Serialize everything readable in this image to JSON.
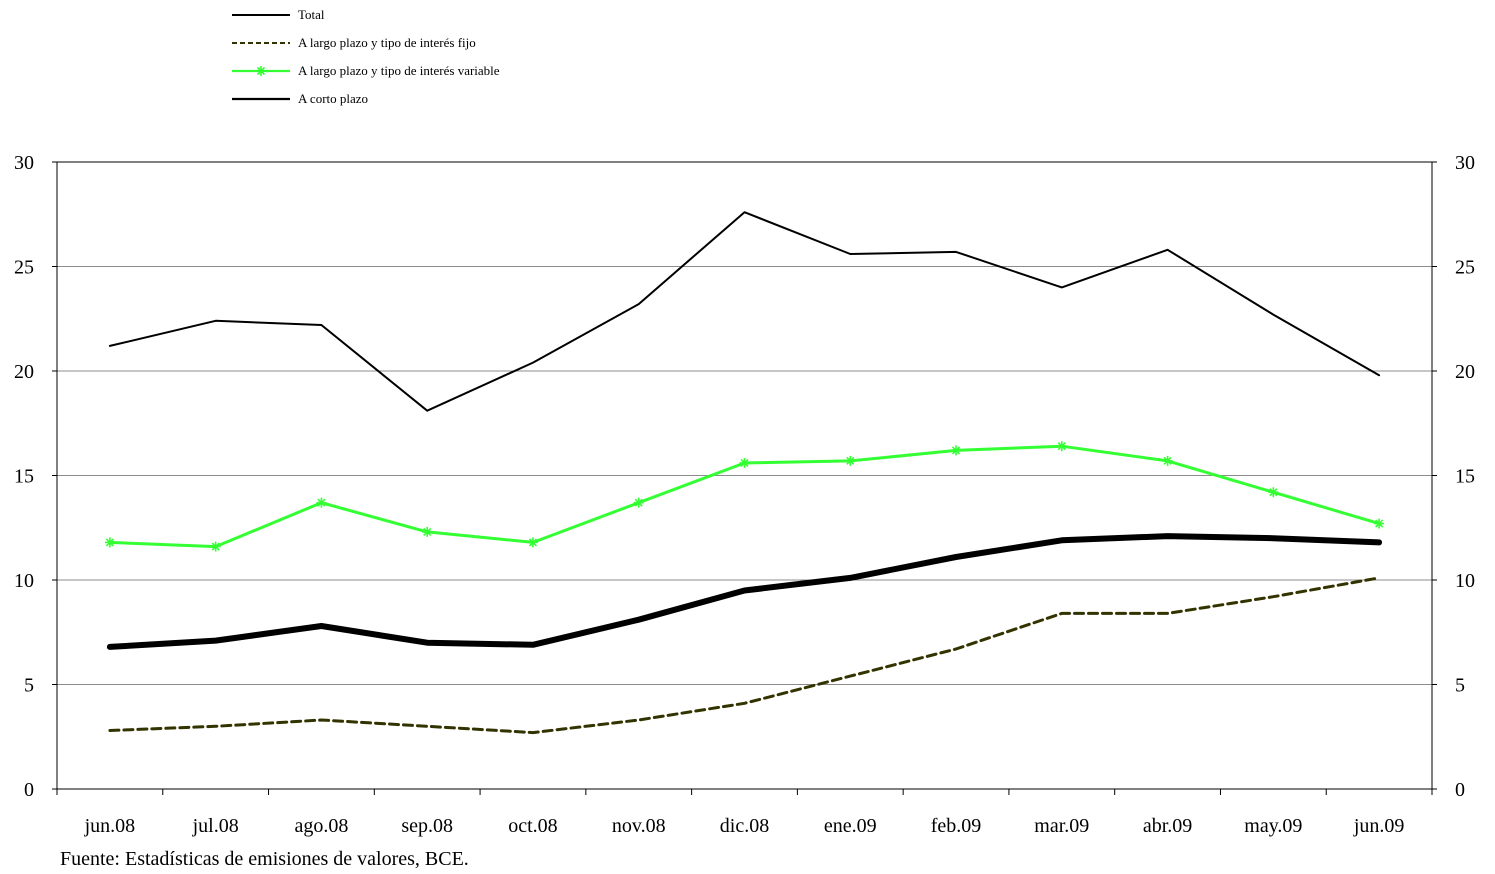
{
  "chart_data": {
    "type": "line",
    "title": "",
    "xlabel": "",
    "ylabel": "",
    "categories": [
      "jun.08",
      "jul.08",
      "ago.08",
      "sep.08",
      "oct.08",
      "nov.08",
      "dic.08",
      "ene.09",
      "feb.09",
      "mar.09",
      "abr.09",
      "may.09",
      "jun.09"
    ],
    "ylim": [
      0,
      30
    ],
    "yticks": [
      0,
      5,
      10,
      15,
      20,
      25,
      30
    ],
    "secondary_axis": true,
    "grid": true,
    "legend_position": "top-left",
    "series": [
      {
        "name": "Total",
        "values": [
          21.2,
          22.4,
          22.2,
          18.1,
          20.4,
          23.2,
          27.6,
          25.6,
          25.7,
          24.0,
          25.8,
          22.7,
          19.8
        ],
        "color": "#000000",
        "style": "solid-thin"
      },
      {
        "name": "A largo plazo y tipo de interés fijo",
        "values": [
          2.8,
          3.0,
          3.3,
          3.0,
          2.7,
          3.3,
          4.1,
          5.4,
          6.7,
          8.4,
          8.4,
          9.2,
          10.1
        ],
        "color": "#333300",
        "style": "dashed"
      },
      {
        "name": "A largo plazo y tipo de interés variable",
        "values": [
          11.8,
          11.6,
          13.7,
          12.3,
          11.8,
          13.7,
          15.6,
          15.7,
          16.2,
          16.4,
          15.7,
          14.2,
          12.7
        ],
        "color": "#33ff33",
        "style": "solid-star"
      },
      {
        "name": "A corto plazo",
        "values": [
          6.8,
          7.1,
          7.8,
          7.0,
          6.9,
          8.1,
          9.5,
          10.1,
          11.1,
          11.9,
          12.1,
          12.0,
          11.8
        ],
        "color": "#000000",
        "style": "solid-thick"
      }
    ]
  },
  "source_note": "Fuente: Estadísticas de emisiones de valores, BCE."
}
